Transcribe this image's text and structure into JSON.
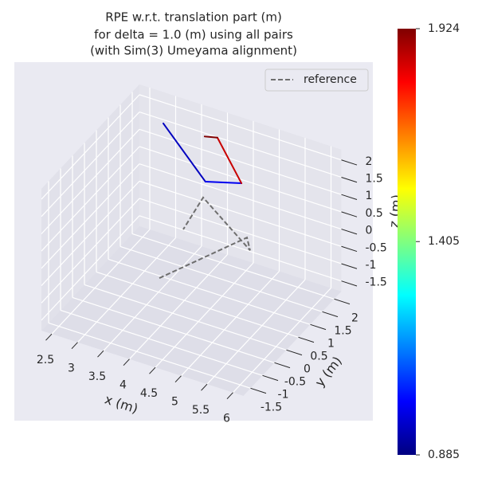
{
  "chart_data": {
    "type": "line3d",
    "title": [
      "RPE w.r.t. translation part (m)",
      "for delta = 1.0 (m) using all pairs",
      "(with Sim(3) Umeyama alignment)"
    ],
    "xlabel": "x (m)",
    "ylabel": "y (m)",
    "zlabel": "z (m)",
    "xlim": [
      2.3,
      6.2
    ],
    "ylim": [
      -1.8,
      2.3
    ],
    "zlim": [
      -1.8,
      2.3
    ],
    "xticks": [
      2.5,
      3.0,
      3.5,
      4.0,
      4.5,
      5.0,
      5.5,
      6.0
    ],
    "yticks": [
      -1.5,
      -1.0,
      -0.5,
      0.0,
      0.5,
      1.0,
      1.5,
      2.0
    ],
    "zticks": [
      -1.5,
      -1.0,
      -0.5,
      0.0,
      0.5,
      1.0,
      1.5,
      2.0
    ],
    "grid": true,
    "legend": "upper right",
    "series": [
      {
        "name": "reference",
        "color": "#6e6e6e",
        "linestyle": "dashed",
        "x": [
          4.0,
          5.0,
          5.3,
          4.5,
          4.0
        ],
        "y": [
          -0.55,
          0.95,
          0.43,
          0.2,
          0.45
        ],
        "z": [
          -0.38,
          0.17,
          0.33,
          1.64,
          0.29
        ]
      }
    ],
    "trajectory": {
      "x": [
        3.5,
        4.3,
        5.0,
        4.6,
        4.4
      ],
      "y": [
        0.7,
        0.73,
        0.72,
        0.58,
        0.48
      ],
      "z": [
        2.93,
        1.61,
        1.91,
        3.14,
        3.15
      ],
      "error": [
        0.885,
        0.95,
        1.0,
        1.85,
        1.924
      ]
    },
    "colormap": "jet",
    "clim": [
      0.885,
      1.924
    ],
    "cticks": [
      0.885,
      1.405,
      1.924
    ]
  }
}
